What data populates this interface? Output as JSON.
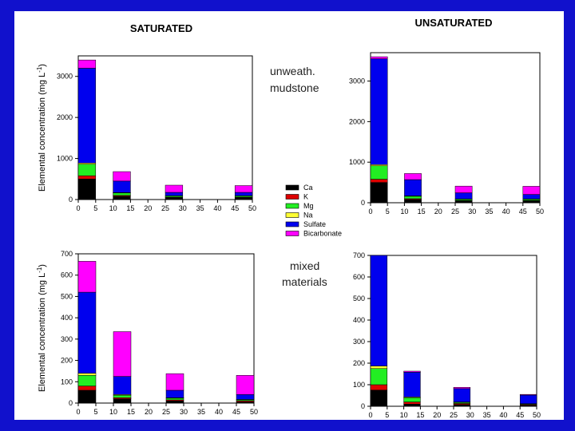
{
  "titles": {
    "left": "SATURATED",
    "right": "UNSATURATED"
  },
  "row_labels": {
    "top": [
      "unweath.",
      "mudstone"
    ],
    "bottom": [
      "mixed",
      "materials"
    ]
  },
  "legend": [
    {
      "name": "Ca",
      "color": "#000000"
    },
    {
      "name": "K",
      "color": "#dd0000"
    },
    {
      "name": "Mg",
      "color": "#22ee22"
    },
    {
      "name": "Na",
      "color": "#ffff33"
    },
    {
      "name": "Sulfate",
      "color": "#0000ee"
    },
    {
      "name": "Bicarbonate",
      "color": "#ff00ff"
    }
  ],
  "chart_data": [
    {
      "type": "bar",
      "id": "saturated-mudstone",
      "title": "SATURATED",
      "ylabel": "Elemental concentration (mg L-1)",
      "xlim": [
        0,
        50
      ],
      "ylim": [
        0,
        3500
      ],
      "xticks": [
        0,
        5,
        10,
        15,
        20,
        25,
        30,
        35,
        40,
        45,
        50
      ],
      "yticks": [
        0,
        1000,
        2000,
        3000
      ],
      "bar_ranges": [
        [
          0,
          5
        ],
        [
          10,
          15
        ],
        [
          25,
          30
        ],
        [
          45,
          50
        ]
      ],
      "series": [
        {
          "name": "Ca",
          "values": [
            500,
            80,
            50,
            50
          ]
        },
        {
          "name": "K",
          "values": [
            80,
            20,
            10,
            10
          ]
        },
        {
          "name": "Mg",
          "values": [
            280,
            60,
            30,
            30
          ]
        },
        {
          "name": "Na",
          "values": [
            30,
            10,
            5,
            5
          ]
        },
        {
          "name": "Sulfate",
          "values": [
            2310,
            280,
            80,
            80
          ]
        },
        {
          "name": "Bicarbonate",
          "values": [
            200,
            230,
            175,
            165
          ]
        }
      ]
    },
    {
      "type": "bar",
      "id": "unsaturated-mudstone",
      "title": "UNSATURATED",
      "ylabel": "",
      "xlim": [
        0,
        50
      ],
      "ylim": [
        0,
        3700
      ],
      "xticks": [
        0,
        5,
        10,
        15,
        20,
        25,
        30,
        35,
        40,
        45,
        50
      ],
      "yticks": [
        0,
        1000,
        2000,
        3000
      ],
      "bar_ranges": [
        [
          0,
          5
        ],
        [
          10,
          15
        ],
        [
          25,
          30
        ],
        [
          45,
          50
        ]
      ],
      "series": [
        {
          "name": "Ca",
          "values": [
            500,
            80,
            50,
            50
          ]
        },
        {
          "name": "K",
          "values": [
            80,
            20,
            10,
            10
          ]
        },
        {
          "name": "Mg",
          "values": [
            330,
            60,
            30,
            30
          ]
        },
        {
          "name": "Na",
          "values": [
            30,
            10,
            5,
            5
          ]
        },
        {
          "name": "Sulfate",
          "values": [
            2610,
            400,
            150,
            110
          ]
        },
        {
          "name": "Bicarbonate",
          "values": [
            50,
            150,
            165,
            200
          ]
        }
      ]
    },
    {
      "type": "bar",
      "id": "saturated-mixed",
      "title": "",
      "ylabel": "Elemental concentration (mg L-1)",
      "xlim": [
        0,
        50
      ],
      "ylim": [
        0,
        700
      ],
      "xticks": [
        0,
        5,
        10,
        15,
        20,
        25,
        30,
        35,
        40,
        45,
        50
      ],
      "yticks": [
        0,
        100,
        200,
        300,
        400,
        500,
        600,
        700
      ],
      "bar_ranges": [
        [
          0,
          5
        ],
        [
          10,
          15
        ],
        [
          25,
          30
        ],
        [
          45,
          50
        ]
      ],
      "series": [
        {
          "name": "Ca",
          "values": [
            60,
            20,
            10,
            5
          ]
        },
        {
          "name": "K",
          "values": [
            20,
            5,
            5,
            5
          ]
        },
        {
          "name": "Mg",
          "values": [
            50,
            12,
            8,
            5
          ]
        },
        {
          "name": "Na",
          "values": [
            10,
            3,
            2,
            2
          ]
        },
        {
          "name": "Sulfate",
          "values": [
            380,
            85,
            35,
            23
          ]
        },
        {
          "name": "Bicarbonate",
          "values": [
            145,
            210,
            78,
            90
          ]
        }
      ]
    },
    {
      "type": "bar",
      "id": "unsaturated-mixed",
      "title": "",
      "ylabel": "",
      "xlim": [
        0,
        50
      ],
      "ylim": [
        0,
        700
      ],
      "xticks": [
        0,
        5,
        10,
        15,
        20,
        25,
        30,
        35,
        40,
        45,
        50
      ],
      "yticks": [
        0,
        100,
        200,
        300,
        400,
        500,
        600,
        700
      ],
      "bar_ranges": [
        [
          0,
          5
        ],
        [
          10,
          15
        ],
        [
          25,
          30
        ],
        [
          45,
          50
        ]
      ],
      "series": [
        {
          "name": "Ca",
          "values": [
            75,
            10,
            8,
            5
          ]
        },
        {
          "name": "K",
          "values": [
            25,
            10,
            5,
            3
          ]
        },
        {
          "name": "Mg",
          "values": [
            75,
            20,
            5,
            3
          ]
        },
        {
          "name": "Na",
          "values": [
            12,
            3,
            2,
            1
          ]
        },
        {
          "name": "Sulfate",
          "values": [
            513,
            115,
            62,
            40
          ]
        },
        {
          "name": "Bicarbonate",
          "values": [
            0,
            5,
            6,
            3
          ]
        }
      ]
    }
  ]
}
